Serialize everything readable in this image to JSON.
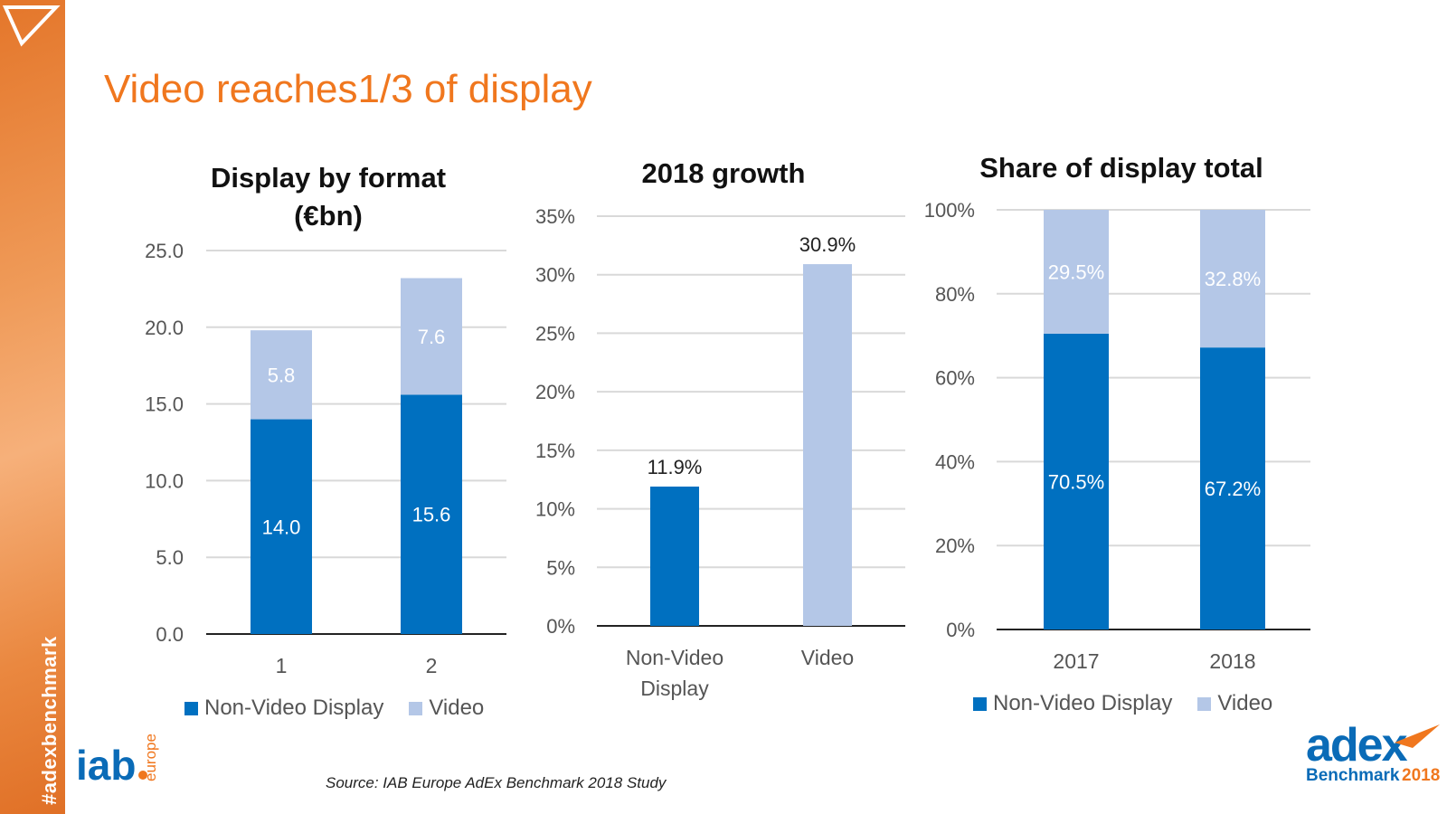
{
  "page": {
    "title": "Video reaches1/3 of display",
    "hashtag": "#adexbenchmark",
    "source": "Source: IAB Europe AdEx Benchmark 2018 Study",
    "logos": {
      "left": "iab europe",
      "right": "adex Benchmark 2018"
    }
  },
  "colors": {
    "non_video": "#0070c0",
    "video": "#b4c7e7",
    "accent": "#f0771e",
    "sidebar": "#e87a2e"
  },
  "legend": {
    "non_video": "Non-Video Display",
    "video": "Video"
  },
  "chart_data": [
    {
      "type": "bar",
      "stacked": true,
      "title": "Display by format (€bn)",
      "categories": [
        "1",
        "2"
      ],
      "series": [
        {
          "name": "Non-Video Display",
          "values": [
            14.0,
            15.6
          ],
          "labels": [
            "14.0",
            "15.6"
          ]
        },
        {
          "name": "Video",
          "values": [
            5.8,
            7.6
          ],
          "labels": [
            "5.8",
            "7.6"
          ]
        }
      ],
      "ylim": [
        0,
        25
      ],
      "yticks": [
        "0.0",
        "5.0",
        "10.0",
        "15.0",
        "20.0",
        "25.0"
      ],
      "grid": true,
      "legend": "bottom"
    },
    {
      "type": "bar",
      "stacked": false,
      "title": "2018 growth",
      "categories": [
        "Non-Video Display",
        "Video"
      ],
      "values": [
        11.9,
        30.9
      ],
      "labels": [
        "11.9%",
        "30.9%"
      ],
      "ylim": [
        0,
        35
      ],
      "yticks": [
        "0%",
        "5%",
        "10%",
        "15%",
        "20%",
        "25%",
        "30%",
        "35%"
      ],
      "grid": true
    },
    {
      "type": "bar",
      "stacked": true,
      "title": "Share of display total",
      "categories": [
        "2017",
        "2018"
      ],
      "series": [
        {
          "name": "Non-Video Display",
          "values": [
            70.5,
            67.2
          ],
          "labels": [
            "70.5%",
            "67.2%"
          ]
        },
        {
          "name": "Video",
          "values": [
            29.5,
            32.8
          ],
          "labels": [
            "29.5%",
            "32.8%"
          ]
        }
      ],
      "ylim": [
        0,
        100
      ],
      "yticks": [
        "0%",
        "20%",
        "40%",
        "60%",
        "80%",
        "100%"
      ],
      "grid": true,
      "legend": "bottom"
    }
  ]
}
